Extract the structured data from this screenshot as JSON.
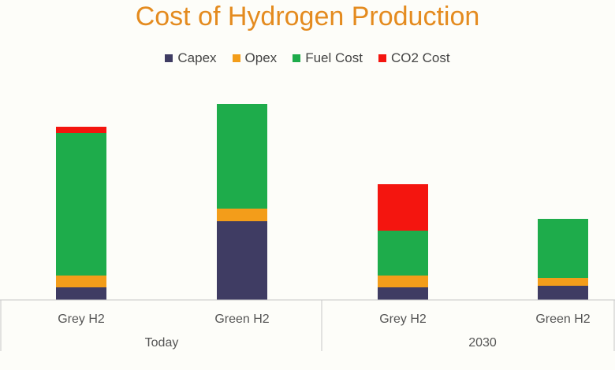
{
  "chart_data": {
    "type": "bar",
    "stacked": true,
    "title": "Cost of Hydrogen Production",
    "xlabel": "",
    "ylabel": "",
    "grid": false,
    "legend_position": "top",
    "groups": [
      {
        "label": "Today",
        "categories": [
          "Grey H2",
          "Green H2"
        ]
      },
      {
        "label": "2030",
        "categories": [
          "Grey H2",
          "Green H2"
        ]
      }
    ],
    "categories": [
      "Grey H2",
      "Green H2",
      "Grey H2",
      "Green H2"
    ],
    "series": [
      {
        "name": "Capex",
        "color": "#3f3c63",
        "values": [
          16,
          100,
          16,
          18
        ]
      },
      {
        "name": "Opex",
        "color": "#f39d1a",
        "values": [
          15,
          16,
          15,
          10
        ]
      },
      {
        "name": "Fuel Cost",
        "color": "#1eac4b",
        "values": [
          181,
          133,
          57,
          75
        ]
      },
      {
        "name": "CO2 Cost",
        "color": "#f4150f",
        "values": [
          8,
          0,
          59,
          0
        ]
      }
    ],
    "ylim": [
      0,
      250
    ]
  }
}
